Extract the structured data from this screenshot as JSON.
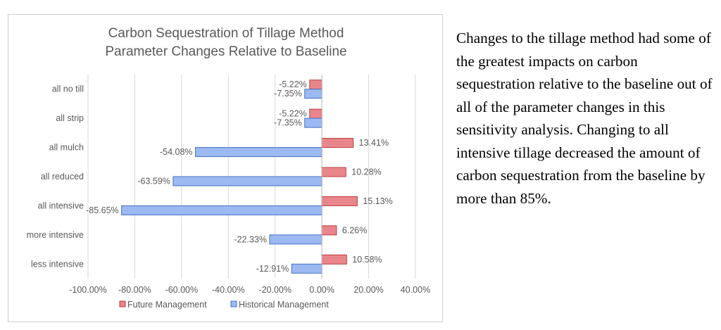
{
  "chart_data": {
    "type": "bar",
    "orientation": "horizontal",
    "title": [
      "Carbon Sequestration of Tillage Method",
      "Parameter Changes Relative to Baseline"
    ],
    "categories": [
      "all no till",
      "all strip",
      "all mulch",
      "all reduced",
      "all intensive",
      "more intensive",
      "less intensive"
    ],
    "series": [
      {
        "name": "Future Management",
        "color": "#e9868b",
        "stroke": "#c0393f",
        "values": [
          -5.22,
          -5.22,
          13.41,
          10.28,
          15.13,
          6.26,
          10.58
        ],
        "labels": [
          "-5.22%",
          "-5.22%",
          "13.41%",
          "10.28%",
          "15.13%",
          "6.26%",
          "10.58%"
        ]
      },
      {
        "name": "Historical Management",
        "color": "#9db9f2",
        "stroke": "#4472c4",
        "values": [
          -7.35,
          -7.35,
          -54.08,
          -63.59,
          -85.65,
          -22.33,
          -12.91
        ],
        "labels": [
          "-7.35%",
          "-7.35%",
          "-54.08%",
          "-63.59%",
          "-85.65%",
          "-22.33%",
          "-12.91%"
        ]
      }
    ],
    "xlim": [
      -100,
      40
    ],
    "xticks": [
      -100,
      -80,
      -60,
      -40,
      -20,
      0,
      20,
      40
    ],
    "xtick_labels": [
      "-100.00%",
      "-80.00%",
      "-60.00%",
      "-40.00%",
      "-20.00%",
      "0.00%",
      "20.00%",
      "40.00%"
    ],
    "grid": "vertical",
    "legend_position": "bottom"
  },
  "side_text": "Changes to the tillage method had some of the greatest impacts on carbon sequestration relative to the baseline out of all of the parameter changes in this sensitivity analysis. Changing to all intensive tillage decreased the amount of carbon sequestration from the baseline by more than 85%."
}
